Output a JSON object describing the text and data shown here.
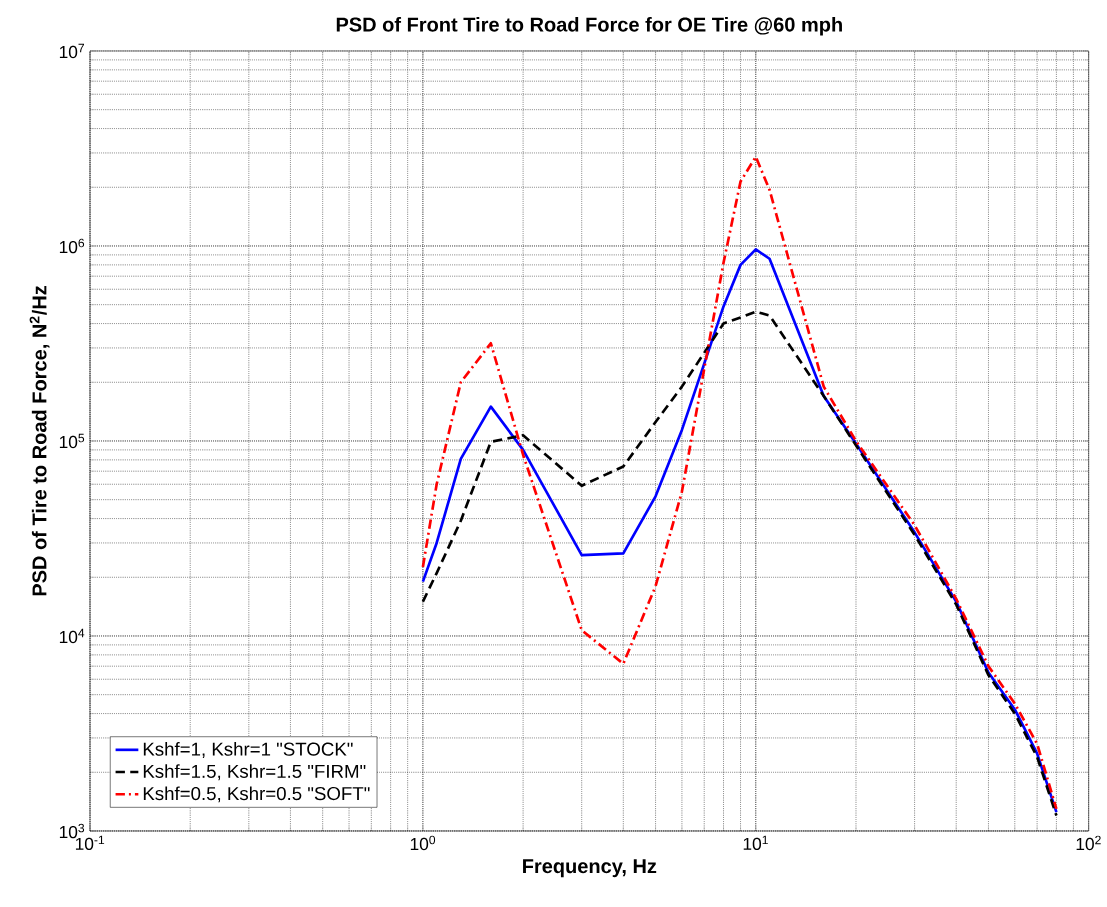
{
  "chart_data": {
    "type": "line",
    "title": "PSD of Front Tire to Road Force for OE Tire @60 mph",
    "xlabel": "Frequency, Hz",
    "ylabel": "PSD of Tire to Road Force, N$^{2}$/Hz",
    "x": [
      1,
      1.1,
      1.3,
      1.6,
      2,
      3,
      4,
      5,
      6,
      8,
      9,
      10,
      11,
      16,
      20,
      30,
      40,
      50,
      60,
      70,
      80
    ],
    "series": [
      {
        "name": "Kshf=1, Kshr=1 \"STOCK\"",
        "color": "#0000ff",
        "line_style": "solid",
        "values": [
          19000,
          30000,
          81000,
          150000,
          90000,
          26000,
          26500,
          52000,
          114000,
          490000,
          800000,
          960000,
          860000,
          170000,
          97000,
          34000,
          15000,
          6500,
          4200,
          2500,
          1250
        ]
      },
      {
        "name": "Kshf=1.5, Kshr=1.5 \"FIRM\"",
        "color": "#000000",
        "line_style": "dashed",
        "values": [
          15000,
          21000,
          39000,
          99000,
          107000,
          59000,
          74000,
          125000,
          190000,
          400000,
          430000,
          460000,
          440000,
          170000,
          95000,
          33000,
          14500,
          6300,
          4000,
          2400,
          1200
        ]
      },
      {
        "name": "Kshf=0.5, Kshr=0.5 \"SOFT\"",
        "color": "#ff0000",
        "line_style": "dashdot",
        "values": [
          22600,
          60000,
          200000,
          317000,
          85000,
          10700,
          7200,
          18000,
          55000,
          820000,
          2140000,
          2870000,
          1940000,
          190000,
          100000,
          37000,
          15500,
          7000,
          4500,
          2800,
          1300
        ]
      }
    ],
    "log": "xy",
    "grid": true,
    "legend": "bottom left",
    "xlim": [
      0.1,
      100
    ],
    "ylim": [
      1000,
      10000000
    ],
    "xticks": [
      {
        "value": 0.1,
        "label": "10$^{-1}$"
      },
      {
        "value": 1,
        "label": "10$^{0}$"
      },
      {
        "value": 10,
        "label": "10$^{1}$"
      },
      {
        "value": 100,
        "label": "10$^{2}$"
      }
    ],
    "yticks": [
      {
        "value": 1000,
        "label": "10$^{3}$"
      },
      {
        "value": 10000,
        "label": "10$^{4}$"
      },
      {
        "value": 100000,
        "label": "10$^{5}$"
      },
      {
        "value": 1000000,
        "label": "10$^{6}$"
      },
      {
        "value": 10000000,
        "label": "10$^{7}$"
      }
    ]
  }
}
